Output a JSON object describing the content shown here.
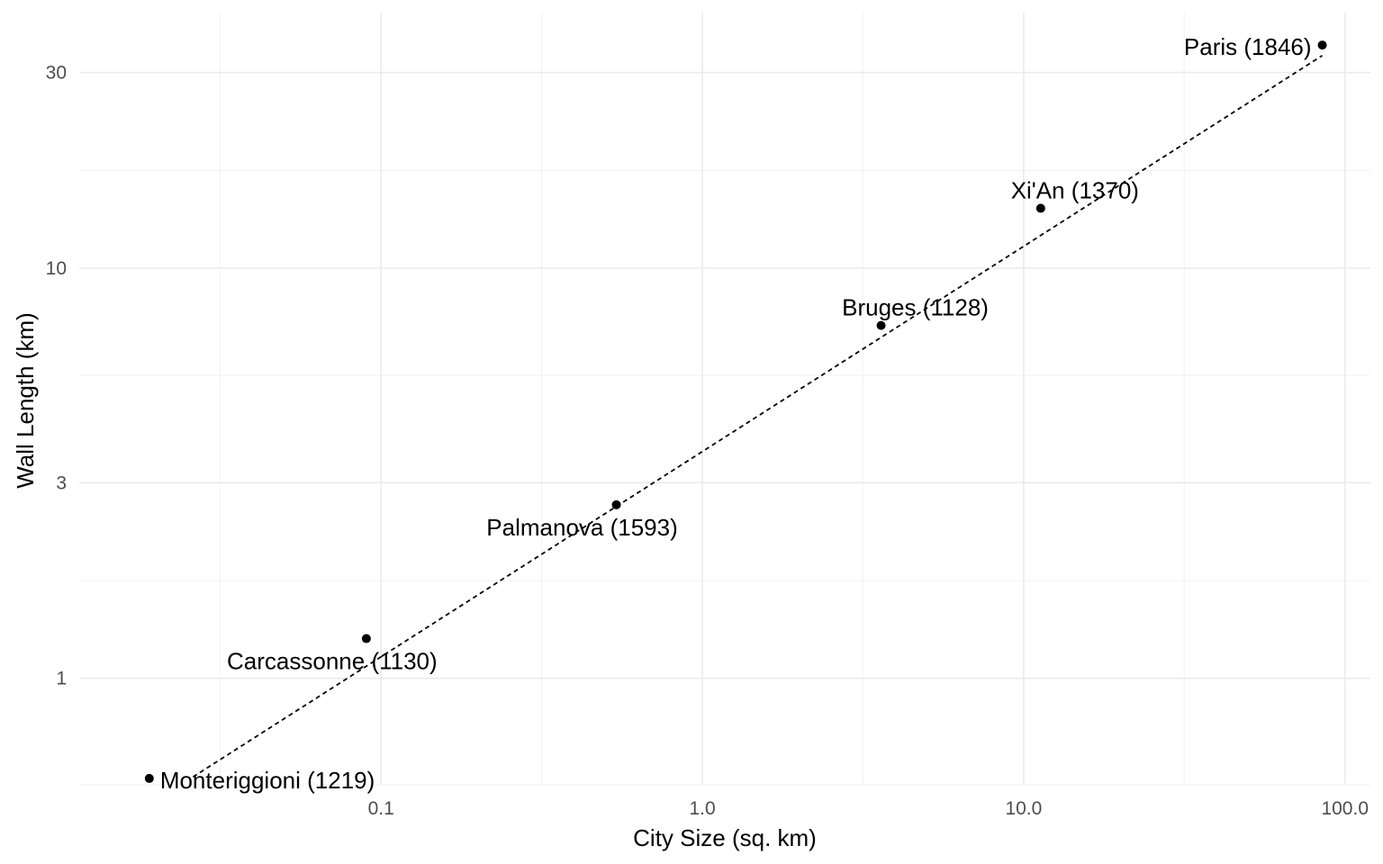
{
  "chart_data": {
    "type": "scatter",
    "title": "",
    "xlabel": "City Size (sq. km)",
    "ylabel": "Wall Length (km)",
    "x_scale": "log10",
    "y_scale": "log10",
    "xlim": [
      0.0115,
      120
    ],
    "ylim": [
      0.55,
      42
    ],
    "x_ticks": [
      {
        "value": 0.1,
        "label": "0.1"
      },
      {
        "value": 1,
        "label": "1.0"
      },
      {
        "value": 10,
        "label": "10.0"
      },
      {
        "value": 100,
        "label": "100.0"
      }
    ],
    "x_minor_ticks": [
      0.0316,
      0.316,
      3.16,
      31.6
    ],
    "y_ticks": [
      {
        "value": 1,
        "label": "1"
      },
      {
        "value": 3,
        "label": "3"
      },
      {
        "value": 10,
        "label": "10"
      },
      {
        "value": 30,
        "label": "30"
      }
    ],
    "y_minor_ticks": [
      0.55,
      1.73,
      5.48,
      17.3
    ],
    "grid": true,
    "points": [
      {
        "label": "Monteriggioni (1219)",
        "x": 0.019,
        "y": 0.57,
        "label_pos": "right"
      },
      {
        "label": "Carcassonne (1130)",
        "x": 0.09,
        "y": 1.25,
        "label_pos": "below"
      },
      {
        "label": "Palmanova (1593)",
        "x": 0.54,
        "y": 2.65,
        "label_pos": "below"
      },
      {
        "label": "Bruges (1128)",
        "x": 3.6,
        "y": 7.25,
        "label_pos": "above"
      },
      {
        "label": "Xi'An (1370)",
        "x": 11.3,
        "y": 14.0,
        "label_pos": "above"
      },
      {
        "label": "Paris (1846)",
        "x": 85,
        "y": 35.0,
        "label_pos": "left"
      }
    ],
    "trend_line": {
      "style": "dashed",
      "from": {
        "x": 0.026,
        "y": 0.575
      },
      "to": {
        "x": 85,
        "y": 33.0
      }
    }
  }
}
